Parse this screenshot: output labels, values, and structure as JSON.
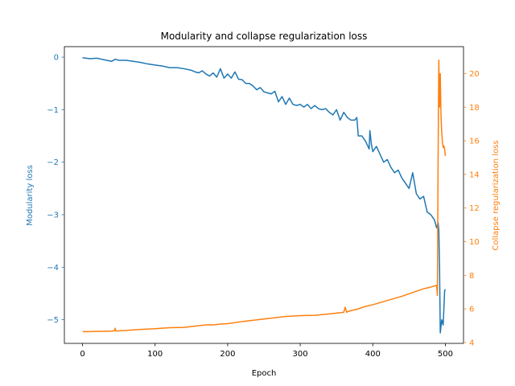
{
  "chart_data": {
    "type": "line",
    "title": "Modularity and collapse regularization loss",
    "xlabel": "Epoch",
    "ylabel_left": "Modularity loss",
    "ylabel_right": "Collapse regularization loss",
    "xlim": [
      -25,
      525
    ],
    "ylim_left": [
      -5.45,
      0.2
    ],
    "ylim_right": [
      3.95,
      21.6
    ],
    "xticks": [
      0,
      100,
      200,
      300,
      400,
      500
    ],
    "yticks_left": [
      0,
      -1,
      -2,
      -3,
      -4,
      -5
    ],
    "yticks_right": [
      4,
      6,
      8,
      10,
      12,
      14,
      16,
      18,
      20
    ],
    "grid": false,
    "colors": {
      "left": "#1f77b4",
      "right": "#ff7f0e",
      "text": "#000000",
      "axis": "#000000"
    },
    "series": [
      {
        "axis": "left",
        "color": "#1f77b4",
        "x": [
          0,
          10,
          20,
          30,
          40,
          45,
          50,
          60,
          70,
          80,
          90,
          100,
          110,
          120,
          130,
          140,
          150,
          155,
          160,
          165,
          170,
          175,
          180,
          185,
          190,
          195,
          200,
          205,
          210,
          215,
          220,
          225,
          230,
          235,
          240,
          245,
          250,
          255,
          260,
          265,
          270,
          275,
          280,
          285,
          290,
          295,
          300,
          305,
          310,
          315,
          320,
          325,
          330,
          335,
          340,
          345,
          350,
          355,
          360,
          365,
          370,
          375,
          378,
          380,
          385,
          390,
          395,
          396,
          398,
          400,
          405,
          410,
          415,
          420,
          425,
          430,
          435,
          440,
          445,
          450,
          455,
          460,
          465,
          470,
          475,
          480,
          485,
          488,
          490,
          491,
          492,
          493,
          495,
          497,
          499,
          500
        ],
        "y": [
          -0.01,
          -0.03,
          -0.02,
          -0.05,
          -0.08,
          -0.04,
          -0.06,
          -0.06,
          -0.08,
          -0.1,
          -0.13,
          -0.15,
          -0.17,
          -0.2,
          -0.2,
          -0.22,
          -0.25,
          -0.28,
          -0.3,
          -0.26,
          -0.32,
          -0.36,
          -0.3,
          -0.38,
          -0.22,
          -0.4,
          -0.32,
          -0.4,
          -0.28,
          -0.42,
          -0.43,
          -0.5,
          -0.5,
          -0.55,
          -0.62,
          -0.58,
          -0.66,
          -0.68,
          -0.7,
          -0.65,
          -0.85,
          -0.75,
          -0.9,
          -0.78,
          -0.9,
          -0.92,
          -0.9,
          -0.95,
          -0.9,
          -0.98,
          -0.92,
          -0.98,
          -1.0,
          -0.98,
          -1.05,
          -1.1,
          -1.0,
          -1.2,
          -1.05,
          -1.15,
          -1.2,
          -1.2,
          -1.15,
          -1.5,
          -1.5,
          -1.6,
          -1.75,
          -1.4,
          -1.65,
          -1.8,
          -1.7,
          -1.85,
          -2.0,
          -1.95,
          -2.1,
          -2.2,
          -2.15,
          -2.3,
          -2.4,
          -2.5,
          -2.2,
          -2.6,
          -2.7,
          -2.65,
          -2.95,
          -3.0,
          -3.1,
          -3.25,
          -3.15,
          -3.3,
          -4.0,
          -5.25,
          -5.0,
          -5.1,
          -4.45,
          -4.42
        ]
      },
      {
        "axis": "right",
        "color": "#ff7f0e",
        "x": [
          0,
          10,
          20,
          30,
          40,
          44,
          45,
          46,
          50,
          60,
          80,
          100,
          120,
          140,
          160,
          170,
          180,
          190,
          200,
          220,
          240,
          260,
          280,
          300,
          320,
          340,
          360,
          362,
          364,
          366,
          380,
          390,
          400,
          420,
          440,
          450,
          460,
          470,
          480,
          488,
          489,
          490,
          491,
          492,
          493,
          494,
          495,
          496,
          497,
          498,
          499,
          500
        ],
        "y": [
          4.65,
          4.65,
          4.66,
          4.67,
          4.68,
          4.7,
          4.85,
          4.68,
          4.7,
          4.72,
          4.78,
          4.82,
          4.88,
          4.9,
          5.0,
          5.05,
          5.05,
          5.1,
          5.12,
          5.25,
          5.35,
          5.45,
          5.55,
          5.6,
          5.62,
          5.7,
          5.8,
          6.1,
          5.8,
          5.85,
          6.0,
          6.15,
          6.25,
          6.5,
          6.75,
          6.9,
          7.05,
          7.2,
          7.3,
          7.4,
          6.8,
          15.0,
          20.8,
          18.0,
          20.0,
          17.5,
          16.5,
          15.9,
          15.6,
          15.7,
          15.5,
          15.1
        ]
      }
    ]
  }
}
